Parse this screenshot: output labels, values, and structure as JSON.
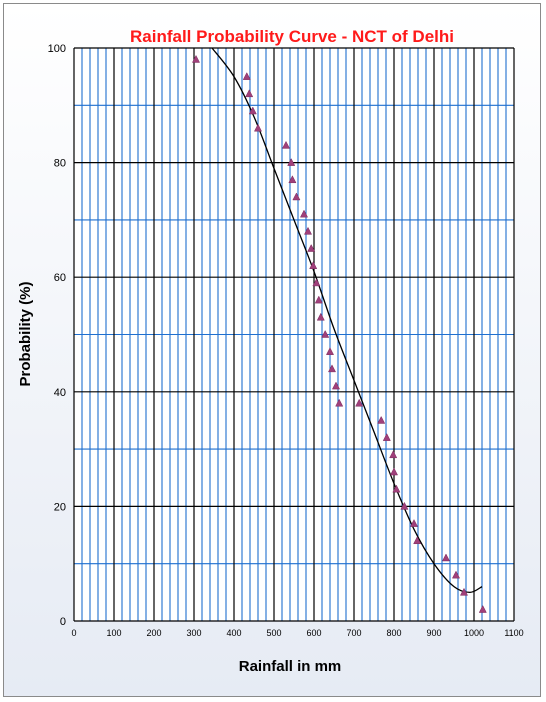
{
  "chart_data": {
    "type": "scatter",
    "title": "Rainfall Probability Curve - NCT of Delhi",
    "xlabel": "Rainfall in mm",
    "ylabel": "Probability (%)",
    "xlim": [
      0,
      1100
    ],
    "ylim": [
      0,
      100
    ],
    "x_major_ticks": [
      0,
      100,
      200,
      300,
      400,
      500,
      600,
      700,
      800,
      900,
      1000,
      1100
    ],
    "y_major_ticks": [
      0,
      20,
      40,
      60,
      80,
      100
    ],
    "x_tick_labels": [
      "0",
      "100",
      "200",
      "300",
      "400",
      "500",
      "600",
      "700",
      "800",
      "900",
      "1000",
      "1100"
    ],
    "y_tick_labels": [
      "0",
      "20",
      "40",
      "60",
      "80",
      "100"
    ],
    "x_minor_step": 20,
    "y_minor_step": 10,
    "grid": true,
    "colors": {
      "title": "#ff1a1a",
      "minor_grid": "#1f6fcf",
      "major_grid": "#000000",
      "points": "#a0407a",
      "curve": "#000000",
      "plot_bg": "#ffffff"
    },
    "series": [
      {
        "type": "scatter",
        "marker": "triangle",
        "x": [
          305,
          432,
          438,
          447,
          460,
          530,
          543,
          546,
          556,
          575,
          585,
          593,
          598,
          606,
          612,
          617,
          628,
          640,
          645,
          655,
          663,
          713,
          768,
          782,
          798,
          800,
          806,
          826,
          850,
          858,
          930,
          955,
          975,
          1022
        ],
        "y": [
          98,
          95,
          92,
          89,
          86,
          83,
          80,
          77,
          74,
          71,
          68,
          65,
          62,
          59,
          56,
          53,
          50,
          47,
          44,
          41,
          38,
          38,
          35,
          32,
          29,
          26,
          23,
          20,
          17,
          14,
          11,
          8,
          5,
          2
        ]
      },
      {
        "type": "line",
        "x": [
          345,
          400,
          450,
          500,
          550,
          600,
          650,
          700,
          750,
          800,
          850,
          900,
          950,
          990,
          1020
        ],
        "y": [
          100,
          95,
          88,
          79,
          70,
          61,
          51,
          42,
          33,
          24,
          16,
          10,
          6,
          5,
          6
        ]
      }
    ]
  }
}
